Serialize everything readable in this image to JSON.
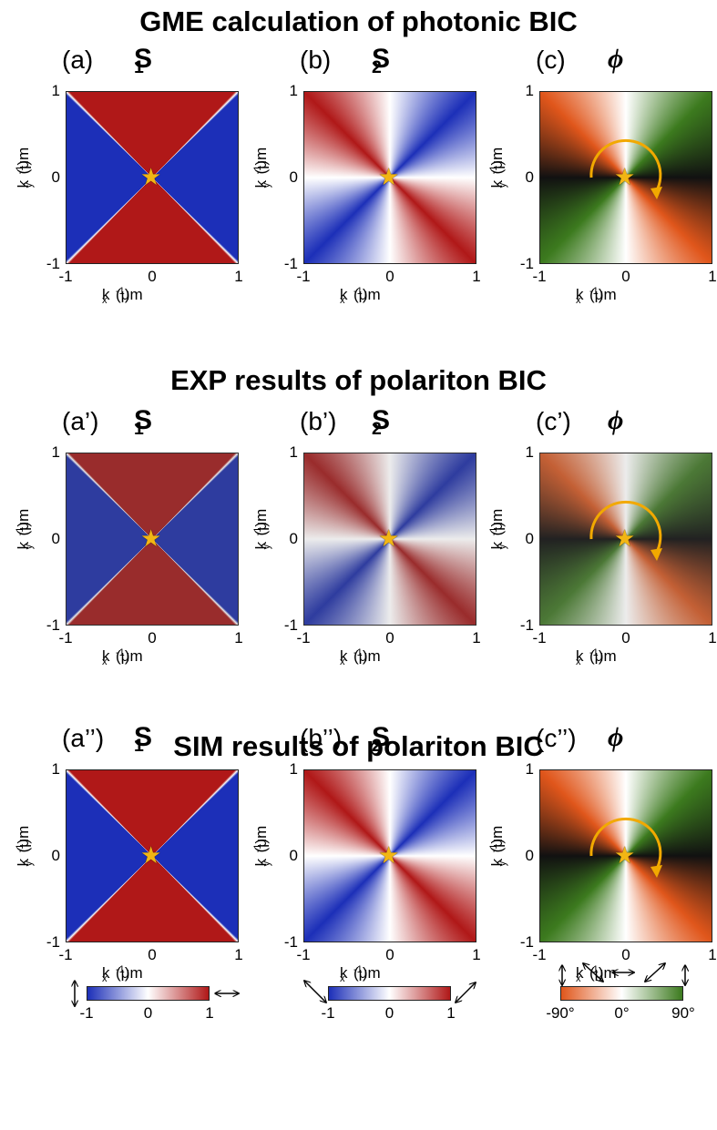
{
  "sections": [
    {
      "title": "GME calculation of photonic BIC",
      "panels": [
        {
          "label": "(a)",
          "symbol": "S",
          "subscript": "1"
        },
        {
          "label": "(b)",
          "symbol": "S",
          "subscript": "2"
        },
        {
          "label": "(c)",
          "symbol": "ϕ"
        }
      ]
    },
    {
      "title": "EXP results of polariton BIC",
      "panels": [
        {
          "label": "(a’)",
          "symbol": "S",
          "subscript": "1"
        },
        {
          "label": "(b’)",
          "symbol": "S",
          "subscript": "2"
        },
        {
          "label": "(c’)",
          "symbol": "ϕ"
        }
      ]
    },
    {
      "title": "SIM results of polariton BIC",
      "panels": [
        {
          "label": "(a’’)",
          "symbol": "S",
          "subscript": "1"
        },
        {
          "label": "(b’’)",
          "symbol": "S",
          "subscript": "2"
        },
        {
          "label": "(c’’)",
          "symbol": "ϕ"
        }
      ]
    }
  ],
  "axis": {
    "ticks": [
      "-1",
      "0",
      "1"
    ],
    "k": "k",
    "x_sub": "x",
    "y_sub": "y",
    "unit": "(μm",
    "unit_exp": "-1",
    "unit_close": ")"
  },
  "colorbars": [
    {
      "ticks": [
        "-1",
        "0",
        "1"
      ]
    },
    {
      "ticks": [
        "-1",
        "0",
        "1"
      ]
    },
    {
      "ticks": [
        "-90°",
        "0°",
        "90°"
      ]
    }
  ]
}
